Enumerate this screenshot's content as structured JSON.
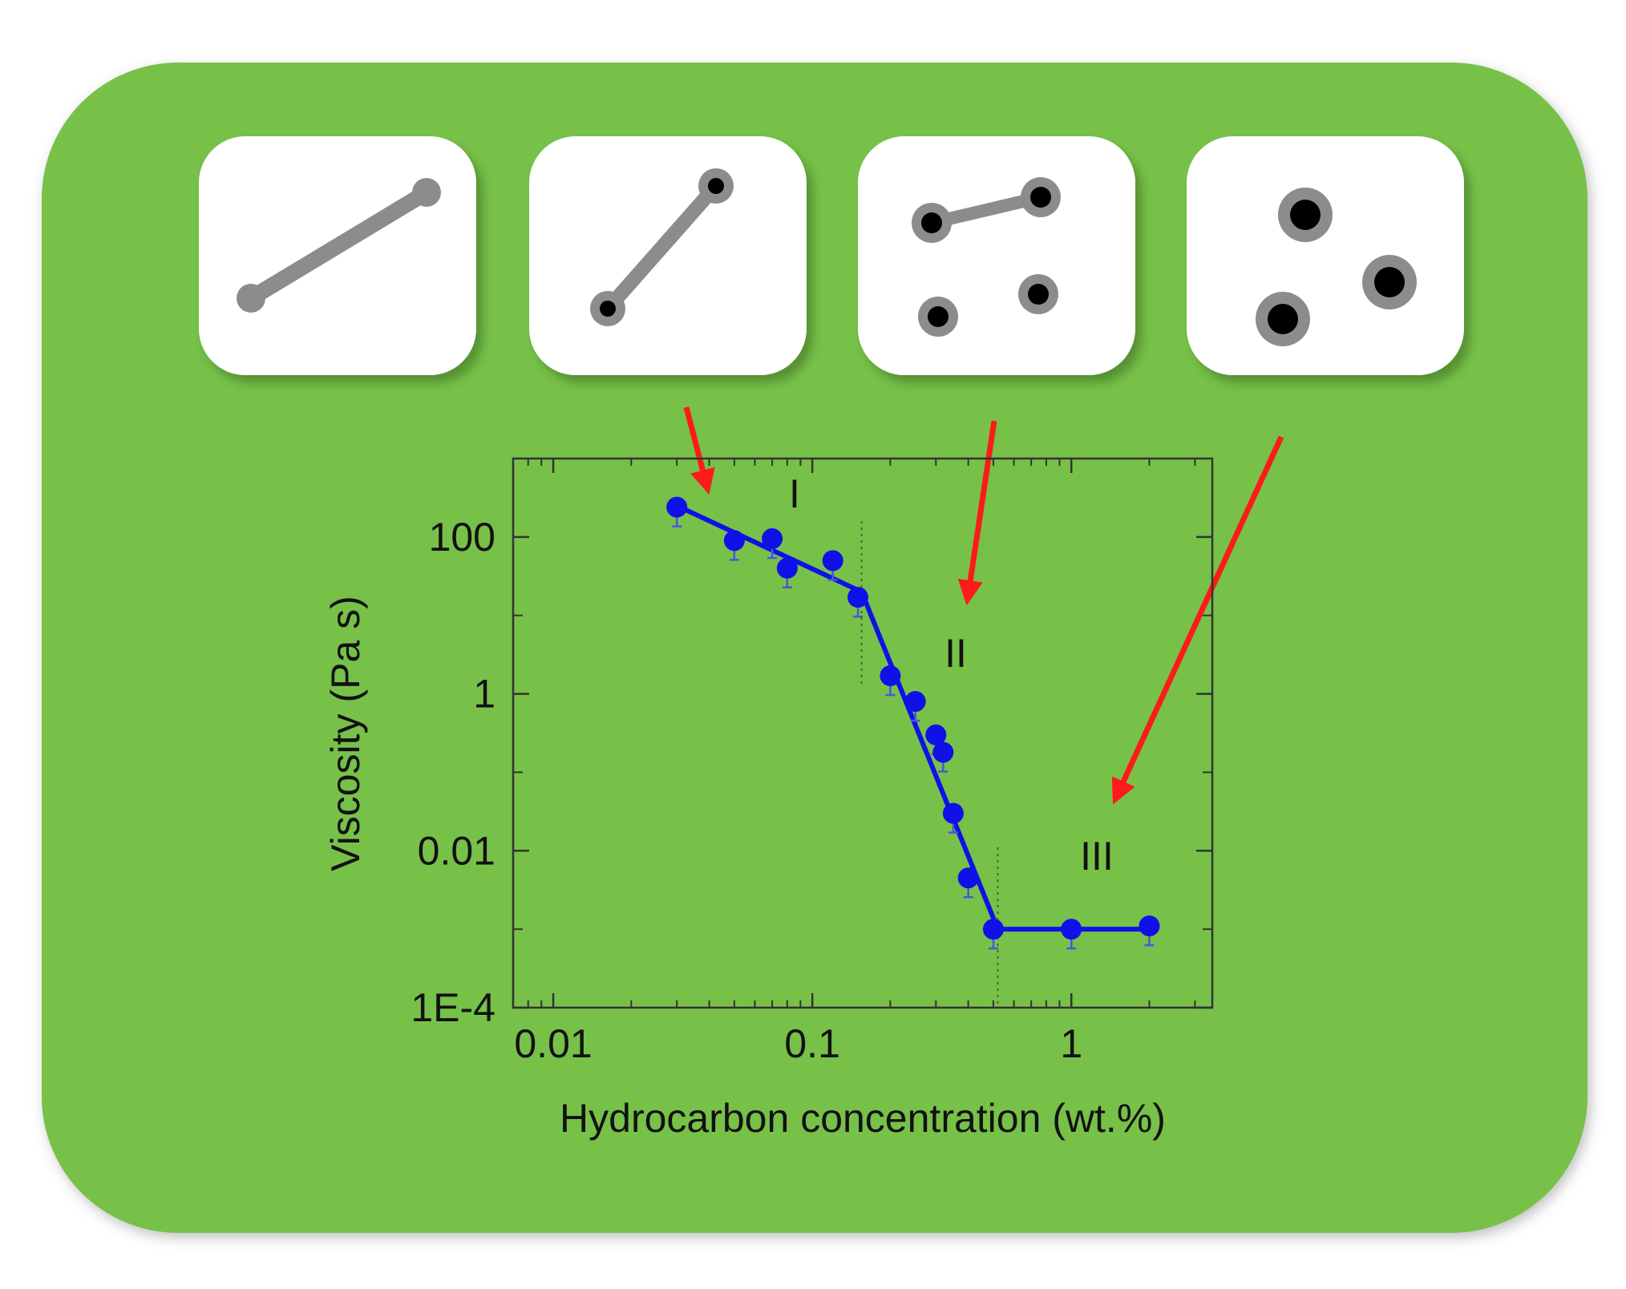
{
  "colors": {
    "panel": "#77c148",
    "card": "#ffffff",
    "bond": "#8c8c8c",
    "atom_core": "#000000",
    "series": "#1010e8",
    "arrow": "#ff1a1a",
    "axis": "#333333"
  },
  "panels": [
    {
      "name": "long chain",
      "atoms": 2,
      "bonded": true,
      "icon": "molecule-long-chain-icon"
    },
    {
      "name": "short chain",
      "atoms": 2,
      "bonded": true,
      "icon": "molecule-short-chain-icon"
    },
    {
      "name": "fragments",
      "atoms": 4,
      "bonded": "partial",
      "icon": "molecule-fragments-icon"
    },
    {
      "name": "separate molecules",
      "atoms": 3,
      "bonded": false,
      "icon": "molecule-separate-icon"
    }
  ],
  "chart_data": {
    "type": "scatter",
    "title": "",
    "xlabel": "Hydrocarbon concentration (wt.%)",
    "ylabel": "Viscosity (Pa s)",
    "xscale": "log",
    "yscale": "log",
    "xlim": [
      0.007,
      3.5
    ],
    "ylim": [
      0.0001,
      1000
    ],
    "xticks": [
      0.01,
      0.1,
      1
    ],
    "xtick_labels": [
      "0.01",
      "0.1",
      "1"
    ],
    "yticks": [
      0.0001,
      0.01,
      1,
      100
    ],
    "ytick_labels": [
      "1E-4",
      "0.01",
      "1",
      "100"
    ],
    "grid": false,
    "legend": "none",
    "region_labels": [
      "I",
      "II",
      "III"
    ],
    "region_boundaries": [
      0.155,
      0.52
    ],
    "series": [
      {
        "points": [
          {
            "x": 0.03,
            "y": 240
          },
          {
            "x": 0.05,
            "y": 90
          },
          {
            "x": 0.07,
            "y": 95
          },
          {
            "x": 0.08,
            "y": 40
          },
          {
            "x": 0.12,
            "y": 50
          },
          {
            "x": 0.15,
            "y": 17
          },
          {
            "x": 0.2,
            "y": 1.7
          },
          {
            "x": 0.25,
            "y": 0.8
          },
          {
            "x": 0.3,
            "y": 0.3
          },
          {
            "x": 0.32,
            "y": 0.18
          },
          {
            "x": 0.35,
            "y": 0.03
          },
          {
            "x": 0.4,
            "y": 0.0045
          },
          {
            "x": 0.5,
            "y": 0.001
          },
          {
            "x": 1,
            "y": 0.001
          },
          {
            "x": 2,
            "y": 0.0011
          }
        ],
        "fit_line": [
          {
            "x": 0.03,
            "y": 250
          },
          {
            "x": 0.155,
            "y": 20
          },
          {
            "x": 0.52,
            "y": 0.001
          },
          {
            "x": 2,
            "y": 0.001
          }
        ]
      }
    ]
  }
}
